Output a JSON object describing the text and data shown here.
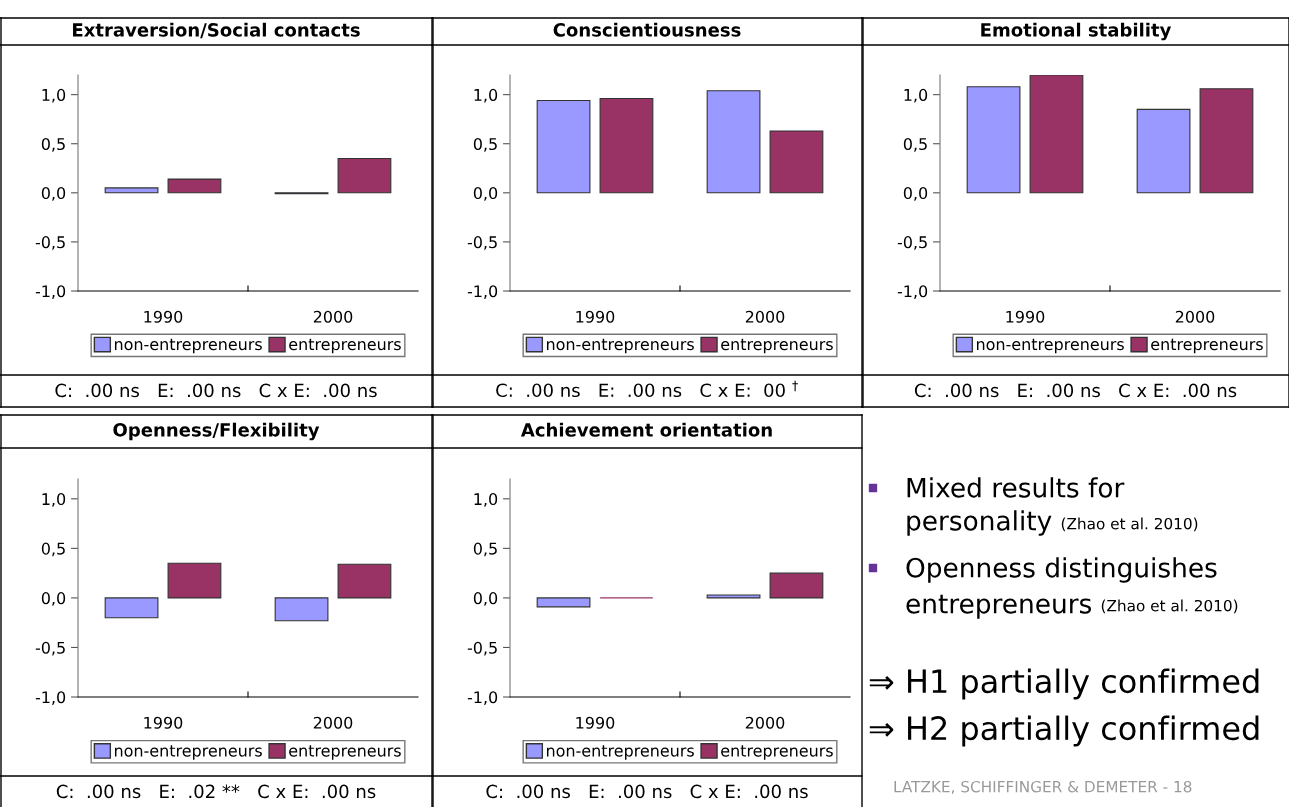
{
  "chart_data": [
    {
      "type": "bar",
      "title": "Extraversion/Social contacts",
      "categories": [
        "1990",
        "2000"
      ],
      "series": [
        {
          "name": "non-entrepreneurs",
          "color": "#9999ff",
          "values": [
            0.05,
            -0.01
          ]
        },
        {
          "name": "entrepreneurs",
          "color": "#993366",
          "values": [
            0.14,
            0.35
          ]
        }
      ],
      "ylim": [
        -1,
        1.2
      ],
      "yticks": [
        {
          "value": -1,
          "label": "-1,0"
        },
        {
          "value": -0.5,
          "label": "-0,5"
        },
        {
          "value": 0,
          "label": "0,0"
        },
        {
          "value": 0.5,
          "label": "0,5"
        },
        {
          "value": 1,
          "label": "1,0"
        }
      ],
      "legend": "bottom",
      "annotations": [
        "C:  .00 ns   E:  .00 ns   C x E:  .00 ns"
      ]
    },
    {
      "type": "bar",
      "title": "Conscientiousness",
      "categories": [
        "1990",
        "2000"
      ],
      "series": [
        {
          "name": "non-entrepreneurs",
          "color": "#9999ff",
          "values": [
            0.94,
            1.04
          ]
        },
        {
          "name": "entrepreneurs",
          "color": "#993366",
          "values": [
            0.96,
            0.63
          ]
        }
      ],
      "ylim": [
        -1,
        1.2
      ],
      "yticks": [
        {
          "value": -1,
          "label": "-1,0"
        },
        {
          "value": -0.5,
          "label": "-0,5"
        },
        {
          "value": 0,
          "label": "0,0"
        },
        {
          "value": 0.5,
          "label": "0,5"
        },
        {
          "value": 1,
          "label": "1,0"
        }
      ],
      "legend": "bottom",
      "annotations": [
        "C:  .00 ns   E:  .00 ns   C x E:  00 $^{†}$"
      ]
    },
    {
      "type": "bar",
      "title": "Emotional stability",
      "categories": [
        "1990",
        "2000"
      ],
      "series": [
        {
          "name": "non-entrepreneurs",
          "color": "#9999ff",
          "values": [
            1.08,
            0.85
          ]
        },
        {
          "name": "entrepreneurs",
          "color": "#993366",
          "values": [
            1.2,
            1.06
          ]
        }
      ],
      "ylim": [
        -1,
        1.2
      ],
      "yticks": [
        {
          "value": -1,
          "label": "-1,0"
        },
        {
          "value": -0.5,
          "label": "-0,5"
        },
        {
          "value": 0,
          "label": "0,0"
        },
        {
          "value": 0.5,
          "label": "0,5"
        },
        {
          "value": 1,
          "label": "1,0"
        }
      ],
      "legend": "bottom",
      "annotations": [
        "C:  .00 ns   E:  .00 ns   C x E:  .00 ns"
      ]
    },
    {
      "type": "bar",
      "title": "Openness/Flexibility",
      "categories": [
        "1990",
        "2000"
      ],
      "series": [
        {
          "name": "non-entrepreneurs",
          "color": "#9999ff",
          "values": [
            -0.2,
            -0.23
          ]
        },
        {
          "name": "entrepreneurs",
          "color": "#993366",
          "values": [
            0.35,
            0.34
          ]
        }
      ],
      "ylim": [
        -1,
        1.2
      ],
      "yticks": [
        {
          "value": -1,
          "label": "-1,0"
        },
        {
          "value": -0.5,
          "label": "-0,5"
        },
        {
          "value": 0,
          "label": "0,0"
        },
        {
          "value": 0.5,
          "label": "0,5"
        },
        {
          "value": 1,
          "label": "1,0"
        }
      ],
      "legend": "bottom",
      "annotations": [
        "C:  .00 ns   E:  .02 **   C x E:  .00 ns"
      ]
    },
    {
      "type": "bar",
      "title": "Achievement orientation",
      "categories": [
        "1990",
        "2000"
      ],
      "series": [
        {
          "name": "non-entrepreneurs",
          "color": "#9999ff",
          "values": [
            -0.09,
            0.03
          ]
        },
        {
          "name": "entrepreneurs",
          "color": "#993366",
          "values": [
            0.0,
            0.25
          ]
        }
      ],
      "ylim": [
        -1,
        1.2
      ],
      "yticks": [
        {
          "value": -1,
          "label": "-1,0"
        },
        {
          "value": -0.5,
          "label": "-0,5"
        },
        {
          "value": 0,
          "label": "0,0"
        },
        {
          "value": 0.5,
          "label": "0,5"
        },
        {
          "value": 1,
          "label": "1,0"
        }
      ],
      "legend": "bottom",
      "annotations": [
        "C:  .00 ns   E:  .00 ns   C x E:  .00 ns"
      ]
    },
    {
      "type": "other",
      "annotations": [
        "Mixed results for",
        "personality",
        "(Zhao et al. 2010)",
        "Openness distinguishes",
        "entrepreneurs",
        "(Zhao et al. 2010)",
        "⇒ H1 partially confirmed",
        "⇒ H2 partially confirmed",
        "LATZKE, SCHIFFINGER & DEMETER - 18"
      ]
    }
  ]
}
